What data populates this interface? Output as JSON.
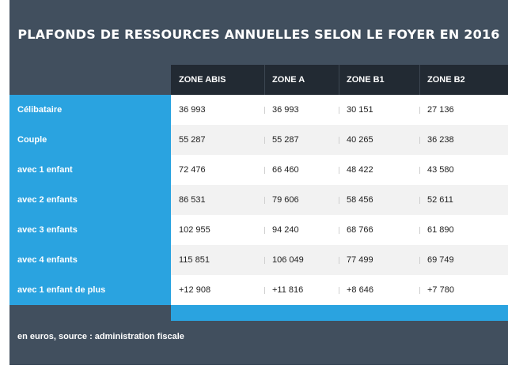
{
  "title": "PLAFONDS DE RESSOURCES ANNUELLES SELON LE FOYER EN 2016",
  "columns": [
    "ZONE ABIS",
    "ZONE A",
    "ZONE B1",
    "ZONE B2"
  ],
  "rows": [
    {
      "label": "Célibataire",
      "values": [
        "36 993",
        "36 993",
        "30 151",
        "27 136"
      ]
    },
    {
      "label": "Couple",
      "values": [
        "55 287",
        "55 287",
        "40 265",
        "36 238"
      ]
    },
    {
      "label": "avec 1 enfant",
      "values": [
        "72 476",
        "66 460",
        "48 422",
        "43 580"
      ]
    },
    {
      "label": "avec 2 enfants",
      "values": [
        "86 531",
        "79 606",
        "58 456",
        "52 611"
      ]
    },
    {
      "label": "avec 3 enfants",
      "values": [
        "102 955",
        "94 240",
        "68 766",
        "61 890"
      ]
    },
    {
      "label": "avec 4 enfants",
      "values": [
        "115 851",
        "106 049",
        "77 499",
        "69 749"
      ]
    },
    {
      "label": "avec 1 enfant de plus",
      "values": [
        "+12 908",
        "+11 816",
        "+8 646",
        "+7 780"
      ]
    }
  ],
  "footer": "en euros, source : administration fiscale",
  "colors": {
    "panel": "#414f5e",
    "header": "#222a33",
    "accent": "#2aa3e0",
    "row_odd": "#ffffff",
    "row_even": "#f2f2f2"
  }
}
